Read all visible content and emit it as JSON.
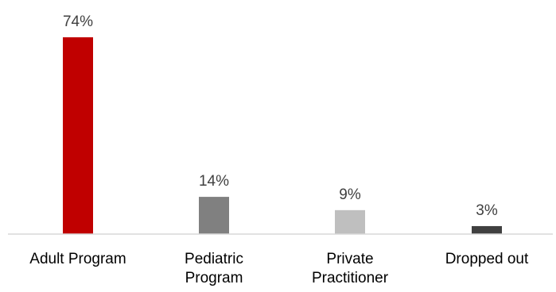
{
  "chart_data": {
    "type": "bar",
    "categories": [
      [
        "Adult Program"
      ],
      [
        "Pediatric",
        "Program"
      ],
      [
        "Private",
        "Practitioner"
      ],
      [
        "Dropped out"
      ]
    ],
    "values": [
      74,
      14,
      9,
      3
    ],
    "data_labels": [
      "74%",
      "14%",
      "9%",
      "3%"
    ],
    "colors": [
      "#c00000",
      "#808080",
      "#bfbfbf",
      "#404040"
    ],
    "ylim": [
      0,
      74
    ],
    "title": "",
    "xlabel": "",
    "ylabel": "",
    "grid": false,
    "legend": "none"
  }
}
